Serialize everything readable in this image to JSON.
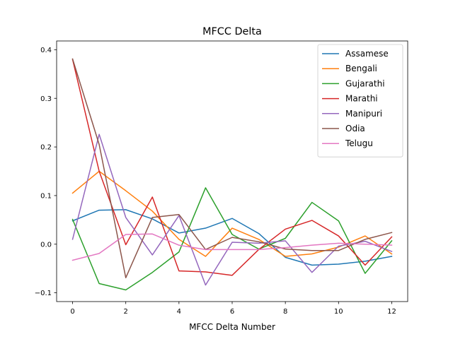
{
  "chart_data": {
    "type": "line",
    "title": "MFCC Delta",
    "xlabel": "MFCC Delta Number",
    "ylabel": "",
    "xlim": [
      -0.6,
      12.6
    ],
    "ylim": [
      -0.118,
      0.418
    ],
    "x": [
      0,
      1,
      2,
      3,
      4,
      5,
      6,
      7,
      8,
      9,
      10,
      11,
      12
    ],
    "xticks": [
      0,
      2,
      4,
      6,
      8,
      10,
      12
    ],
    "yticks": [
      -0.1,
      0.0,
      0.1,
      0.2,
      0.3,
      0.4
    ],
    "ytick_labels": [
      "−0.1",
      "0.0",
      "0.1",
      "0.2",
      "0.3",
      "0.4"
    ],
    "grid": false,
    "legend_position": "top-right",
    "series": [
      {
        "name": "Assamese",
        "color": "#1f77b4",
        "values": [
          0.048,
          0.07,
          0.071,
          0.052,
          0.023,
          0.033,
          0.053,
          0.022,
          -0.027,
          -0.043,
          -0.041,
          -0.035,
          -0.025
        ]
      },
      {
        "name": "Bengali",
        "color": "#ff7f0e",
        "values": [
          0.105,
          0.15,
          0.11,
          0.068,
          0.01,
          -0.025,
          0.033,
          0.01,
          -0.025,
          -0.02,
          -0.006,
          0.017,
          -0.02
        ]
      },
      {
        "name": "Gujarathi",
        "color": "#2ca02c",
        "values": [
          0.051,
          -0.081,
          -0.094,
          -0.058,
          -0.016,
          0.116,
          0.02,
          -0.01,
          0.012,
          0.086,
          0.048,
          -0.06,
          0.007
        ]
      },
      {
        "name": "Marathi",
        "color": "#d62728",
        "values": [
          0.38,
          0.15,
          -0.001,
          0.097,
          -0.055,
          -0.057,
          -0.064,
          -0.011,
          0.031,
          0.049,
          0.017,
          -0.043,
          0.015
        ]
      },
      {
        "name": "Manipuri",
        "color": "#9467bd",
        "values": [
          0.01,
          0.226,
          0.055,
          -0.022,
          0.059,
          -0.084,
          0.004,
          0.002,
          0.007,
          -0.058,
          -0.004,
          0.006,
          -0.015
        ]
      },
      {
        "name": "Odia",
        "color": "#8c564b",
        "values": [
          0.381,
          0.205,
          -0.069,
          0.055,
          0.061,
          -0.011,
          0.014,
          0.005,
          -0.01,
          -0.013,
          -0.013,
          0.01,
          0.024
        ]
      },
      {
        "name": "Telugu",
        "color": "#e377c2",
        "values": [
          -0.033,
          -0.019,
          0.02,
          0.021,
          -0.002,
          -0.011,
          -0.011,
          -0.011,
          -0.007,
          -0.002,
          0.002,
          0.0,
          -0.002
        ]
      }
    ]
  }
}
